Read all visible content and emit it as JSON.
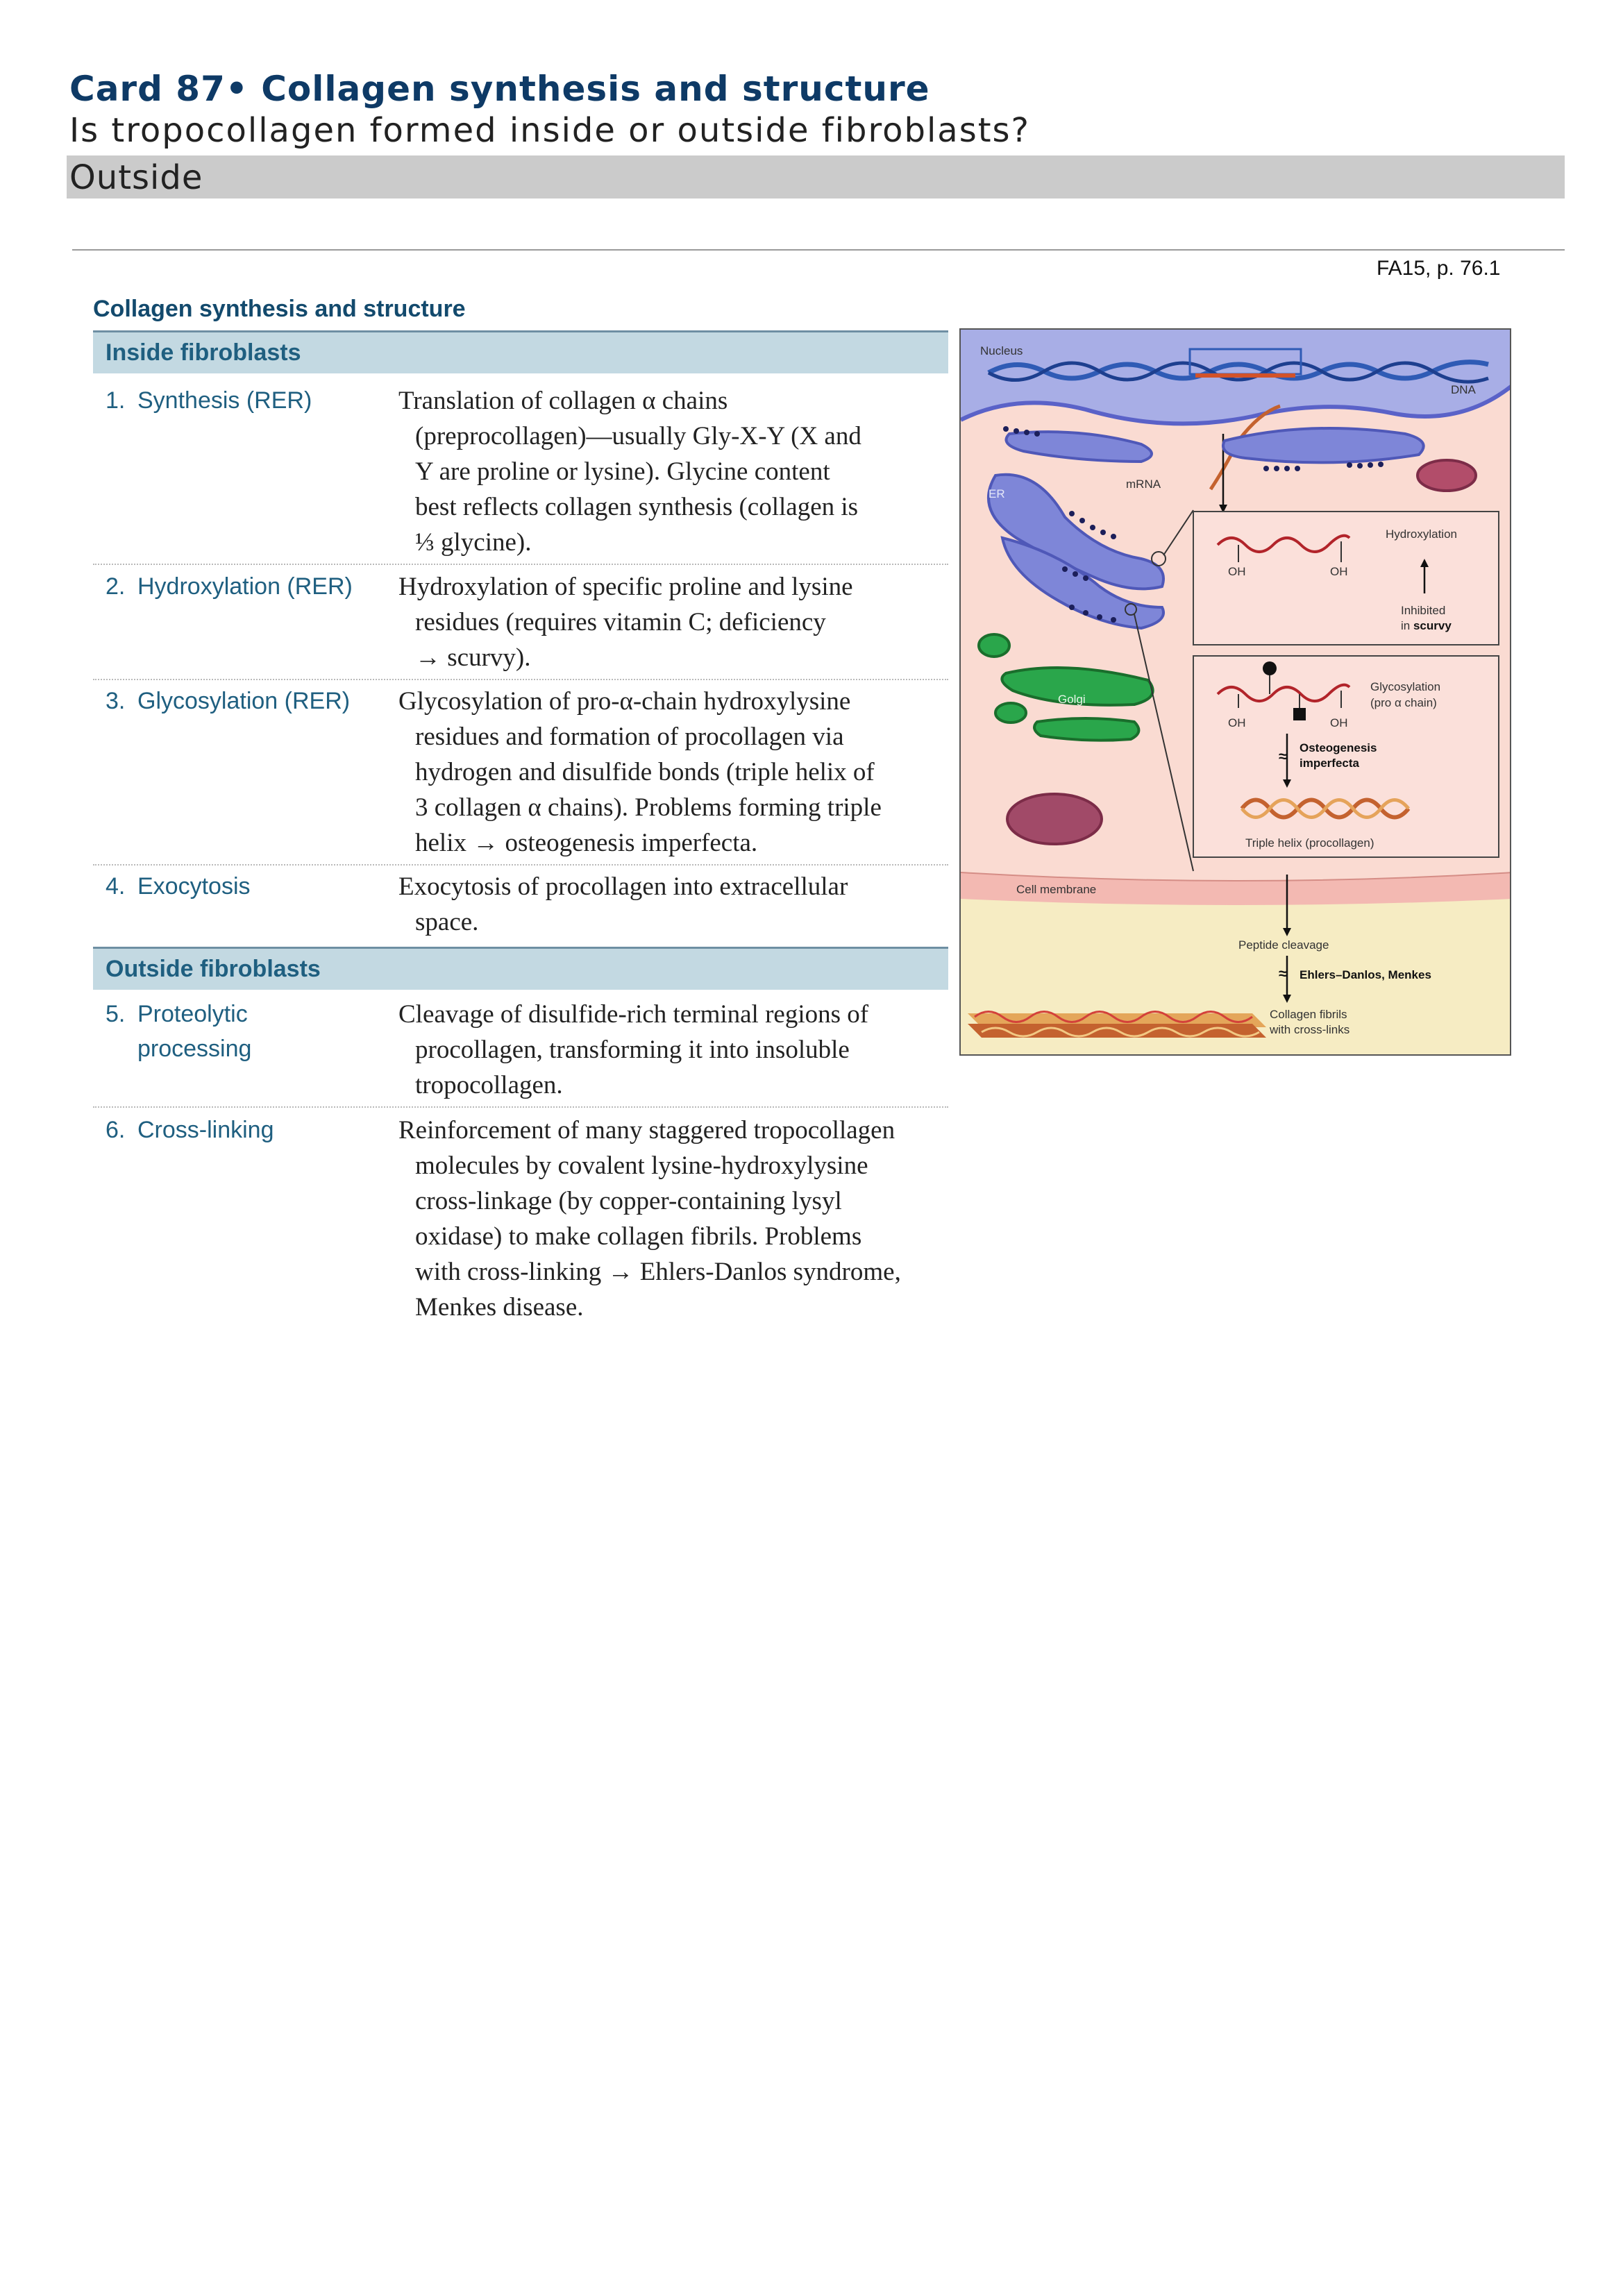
{
  "card": {
    "title": "Card 87• Collagen synthesis and structure",
    "question": "Is tropocollagen formed inside or outside fibroblasts?",
    "answer": "Outside",
    "source": "FA15, p. 76.1"
  },
  "section": {
    "title": "Collagen synthesis and structure",
    "inside_label": "Inside fibroblasts",
    "outside_label": "Outside fibroblasts"
  },
  "steps": [
    {
      "num": "1.",
      "name": [
        "Synthesis (RER)"
      ],
      "desc": [
        "Translation of collagen α chains",
        "(preprocollagen)—usually Gly-X-Y (X and",
        "Y are proline or lysine). Glycine content",
        "best reflects collagen synthesis (collagen is",
        "⅓ glycine)."
      ]
    },
    {
      "num": "2.",
      "name": [
        "Hydroxylation (RER)"
      ],
      "desc": [
        "Hydroxylation of specific proline and lysine",
        "residues (requires vitamin C; deficiency",
        "→ scurvy)."
      ]
    },
    {
      "num": "3.",
      "name": [
        "Glycosylation (RER)"
      ],
      "desc": [
        "Glycosylation of pro-α-chain hydroxylysine",
        "residues and formation of procollagen via",
        "hydrogen and disulfide bonds (triple helix of",
        "3 collagen α chains). Problems forming triple",
        "helix → osteogenesis imperfecta."
      ]
    },
    {
      "num": "4.",
      "name": [
        "Exocytosis"
      ],
      "desc": [
        "Exocytosis of procollagen into extracellular",
        "space."
      ]
    },
    {
      "num": "5.",
      "name": [
        "Proteolytic",
        "processing"
      ],
      "desc": [
        "Cleavage of disulfide-rich terminal regions of",
        "procollagen, transforming it into insoluble",
        "tropocollagen."
      ]
    },
    {
      "num": "6.",
      "name": [
        "Cross-linking"
      ],
      "desc": [
        "Reinforcement of many staggered tropocollagen",
        "molecules by covalent lysine-hydroxylysine",
        "cross-linkage (by copper-containing lysyl",
        "oxidase) to make collagen fibrils. Problems",
        "with cross-linking → Ehlers-Danlos syndrome,",
        "Menkes disease."
      ]
    }
  ],
  "figure": {
    "nucleus": "Nucleus",
    "dna": "DNA",
    "mrna": "mRNA",
    "er": "ER",
    "golgi": "Golgi",
    "hydroxylation": "Hydroxylation",
    "inhibited": "Inhibited",
    "in_scurvy_prefix": "in ",
    "in_scurvy_bold": "scurvy",
    "oh": "OH",
    "glycosylation": "Glycosylation",
    "pro_alpha": "(pro α chain)",
    "osteogenesis": "Osteogenesis",
    "imperfecta": "imperfecta",
    "triple_helix": "Triple helix (procollagen)",
    "cell_membrane": "Cell membrane",
    "peptide_cleavage": "Peptide cleavage",
    "ehlers": "Ehlers–Danlos, Menkes",
    "fibrils": "Collagen fibrils",
    "crosslinks": "with cross-links"
  }
}
